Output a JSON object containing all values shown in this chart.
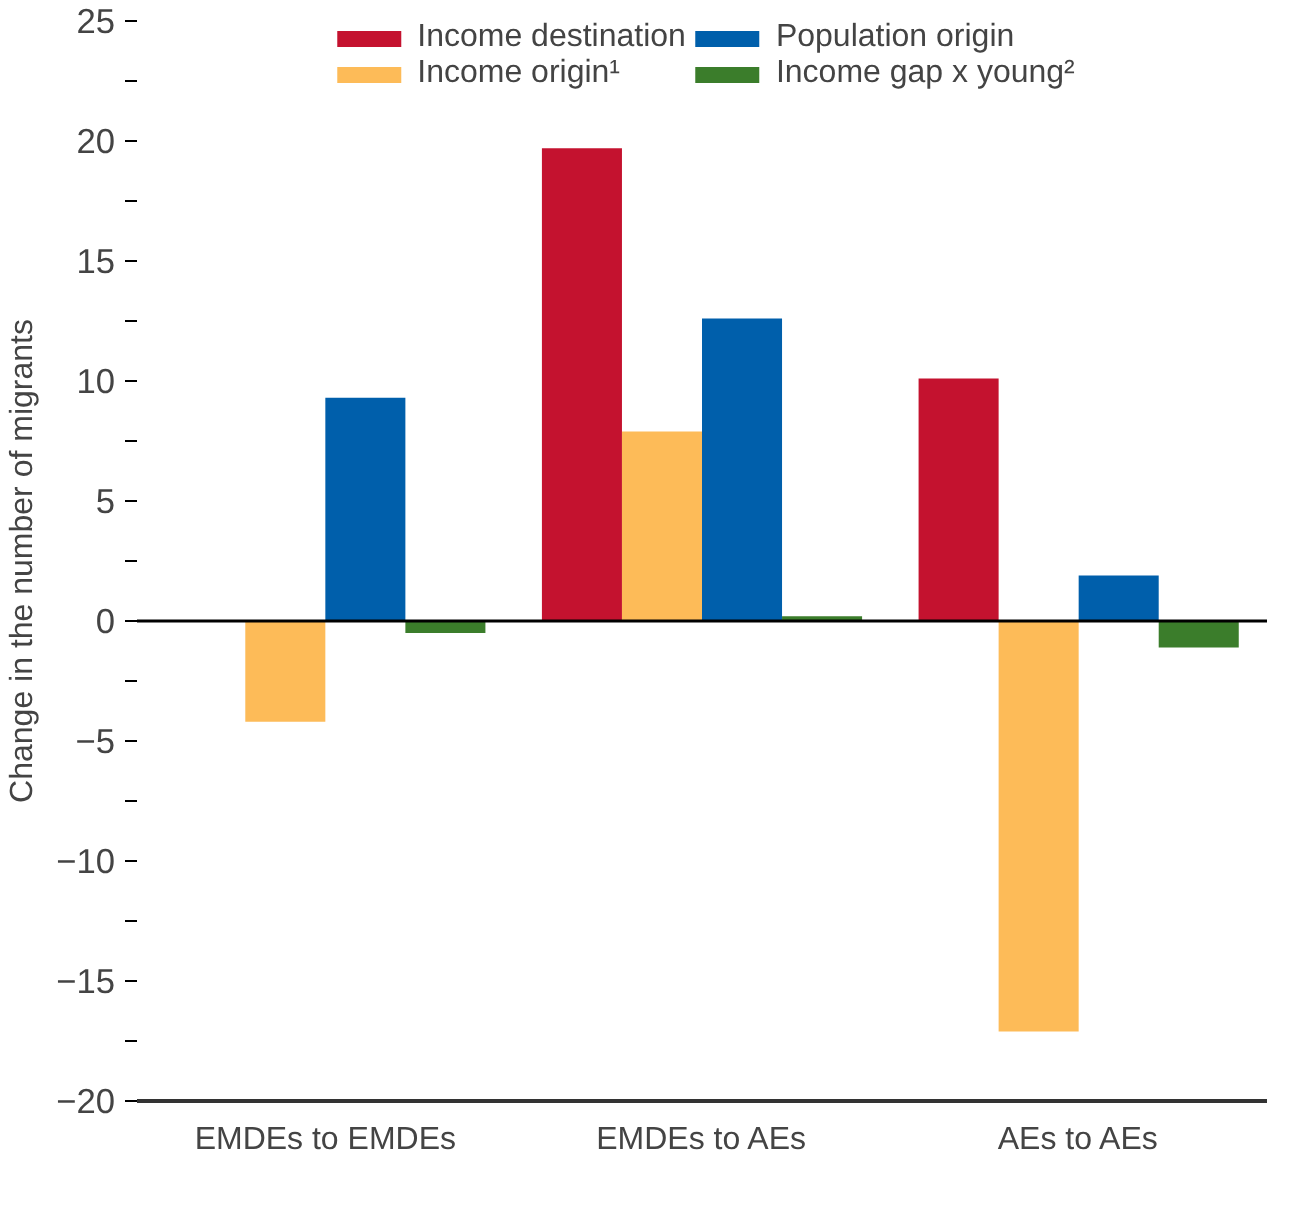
{
  "chart_data": {
    "type": "bar",
    "ylabel": "Change in the number of migrants",
    "categories": [
      "EMDEs to EMDEs",
      "EMDEs to AEs",
      "AEs to AEs"
    ],
    "series": [
      {
        "name": "Income destination",
        "color": "#c4122f",
        "values": [
          0,
          19.7,
          10.1
        ]
      },
      {
        "name": "Income origin¹",
        "color": "#fdbb58",
        "values": [
          -4.2,
          7.9,
          -17.1
        ]
      },
      {
        "name": "Population origin",
        "color": "#005fab",
        "values": [
          9.3,
          12.6,
          1.9
        ]
      },
      {
        "name": "Income gap x young²",
        "color": "#3b7d2b",
        "values": [
          -0.5,
          0.2,
          -1.1
        ]
      }
    ],
    "ylim": [
      -20,
      25
    ],
    "yticks": [
      -20,
      {
        "value": -17.5,
        "label": null
      },
      -15,
      {
        "value": -12.5,
        "label": null
      },
      -10,
      {
        "value": -7.5,
        "label": null
      },
      -5,
      {
        "value": -2.5,
        "label": null
      },
      0,
      {
        "value": 2.5,
        "label": null
      },
      5,
      {
        "value": 7.5,
        "label": null
      },
      10,
      {
        "value": 12.5,
        "label": null
      },
      15,
      {
        "value": 17.5,
        "label": null
      },
      20,
      {
        "value": 22.5,
        "label": null
      },
      25
    ],
    "ref_lines": [
      {
        "axis": "y",
        "value": 0,
        "color": "#000000"
      }
    ],
    "grid": false,
    "legend": "top"
  }
}
